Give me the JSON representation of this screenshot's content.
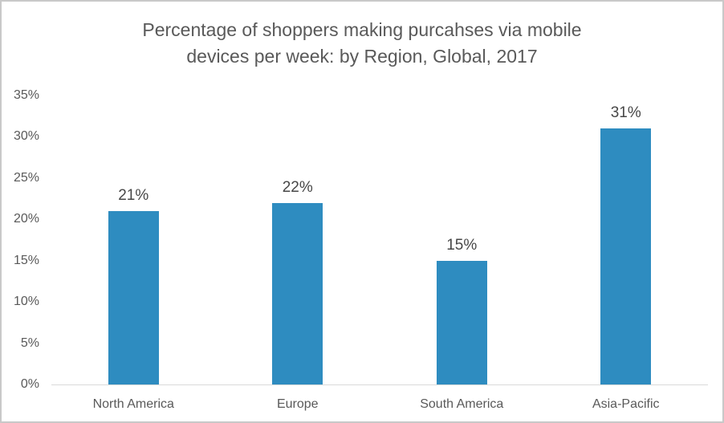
{
  "chart_data": {
    "type": "bar",
    "title": "Percentage of shoppers making purcahses via mobile devices per week: by Region, Global, 2017",
    "title_lines": [
      "Percentage of shoppers making purcahses via mobile",
      "devices per week: by Region, Global, 2017"
    ],
    "categories": [
      "North America",
      "Europe",
      "South America",
      "Asia-Pacific"
    ],
    "values": [
      21,
      22,
      15,
      31
    ],
    "data_labels": [
      "21%",
      "22%",
      "15%",
      "31%"
    ],
    "yticks": [
      0,
      5,
      10,
      15,
      20,
      25,
      30,
      35
    ],
    "ytick_labels": [
      "0%",
      "5%",
      "10%",
      "15%",
      "20%",
      "25%",
      "30%",
      "35%"
    ],
    "ylim": [
      0,
      35
    ],
    "xlabel": "",
    "ylabel": "",
    "grid": false,
    "legend": false,
    "colors": {
      "bar": "#2e8cc0",
      "title": "#595959",
      "axis_labels": "#595959",
      "data_labels": "#474747",
      "axis_line": "#d9d9d9",
      "frame_border": "#c9c9c9",
      "background": "#ffffff"
    }
  }
}
